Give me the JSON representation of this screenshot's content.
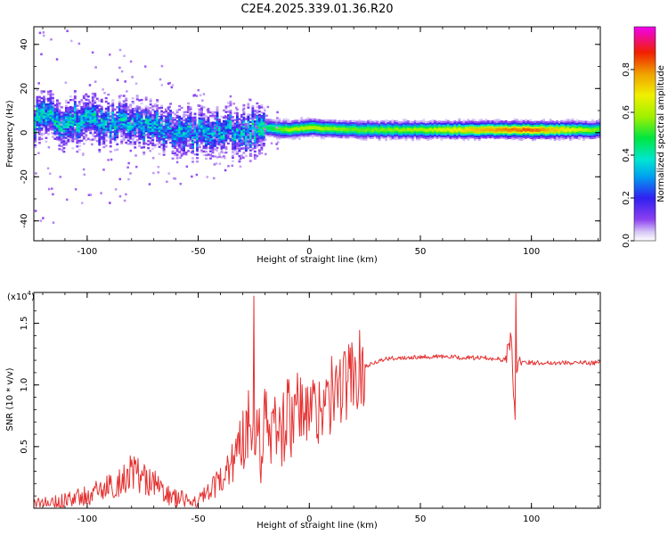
{
  "title": "C2E4.2025.339.01.36.R20",
  "chart_data": [
    {
      "type": "heatmap",
      "xlabel": "Height of straight line (km)",
      "ylabel": "Frequency (Hz)",
      "xlim": [
        -124,
        131
      ],
      "ylim": [
        -49,
        48
      ],
      "xticks": [
        "-100",
        "-50",
        "0",
        "50",
        "100"
      ],
      "xtick_values": [
        -100,
        -50,
        0,
        50,
        100
      ],
      "yticks": [
        "40",
        "20",
        "0",
        "-20",
        "-40"
      ],
      "ytick_values": [
        40,
        20,
        0,
        -20,
        -40
      ],
      "colorbar": {
        "label": "Normalized spectral amplitude",
        "range": [
          0,
          1
        ],
        "ticks": [
          "0.0",
          "0.2",
          "0.4",
          "0.6",
          "0.8"
        ],
        "tick_values": [
          0.0,
          0.2,
          0.4,
          0.6,
          0.8
        ]
      },
      "ridge": {
        "x": [
          -124,
          -100,
          -75,
          -50,
          -30,
          -20,
          -10,
          0,
          20,
          50,
          75,
          90,
          100,
          131
        ],
        "center_hz": [
          6,
          5,
          3,
          -1,
          1,
          2,
          1,
          2,
          1,
          1,
          1,
          1,
          1,
          1
        ],
        "amplitude": [
          0.38,
          0.35,
          0.33,
          0.32,
          0.33,
          0.45,
          0.6,
          0.62,
          0.55,
          0.6,
          0.75,
          0.82,
          0.85,
          0.55
        ]
      }
    },
    {
      "type": "line",
      "xlabel": "Height of straight line (km)",
      "ylabel": "SNR (10 * v/v)",
      "y_multiplier": "(x10",
      "y_exponent": "4",
      "y_multiplier_close": ")",
      "xlim": [
        -124,
        131
      ],
      "ylim": [
        0,
        1.75
      ],
      "xticks": [
        "-100",
        "-50",
        "0",
        "50",
        "100"
      ],
      "xtick_values": [
        -100,
        -50,
        0,
        50,
        100
      ],
      "yticks": [
        "0.5",
        "1.0",
        "1.5"
      ],
      "ytick_values": [
        0.5,
        1.0,
        1.5
      ],
      "color": "#e53232",
      "series": [
        {
          "name": "SNR",
          "x": [
            -124,
            -110,
            -100,
            -90,
            -85,
            -80,
            -75,
            -70,
            -65,
            -60,
            -55,
            -50,
            -45,
            -40,
            -35,
            -30,
            -27,
            -25,
            -22,
            -20,
            -17,
            -15,
            -12,
            -10,
            -7,
            -5,
            -2,
            0,
            3,
            5,
            8,
            10,
            12,
            15,
            18,
            20,
            25,
            30,
            35,
            40,
            50,
            60,
            70,
            80,
            85,
            88,
            90,
            91,
            92,
            93,
            94,
            95,
            97,
            100,
            110,
            120,
            131
          ],
          "y": [
            0.03,
            0.06,
            0.1,
            0.17,
            0.22,
            0.3,
            0.25,
            0.2,
            0.12,
            0.08,
            0.06,
            0.06,
            0.12,
            0.22,
            0.38,
            0.55,
            0.75,
            0.8,
            0.5,
            0.72,
            0.55,
            0.72,
            0.62,
            0.78,
            0.66,
            0.82,
            0.72,
            0.85,
            0.75,
            0.88,
            0.82,
            0.92,
            0.95,
            1.0,
            1.05,
            1.1,
            1.15,
            1.19,
            1.21,
            1.22,
            1.23,
            1.23,
            1.22,
            1.22,
            1.21,
            1.2,
            1.32,
            1.4,
            0.85,
            1.1,
            1.18,
            1.2,
            1.19,
            1.18,
            1.18,
            1.18,
            1.18
          ]
        }
      ]
    }
  ]
}
